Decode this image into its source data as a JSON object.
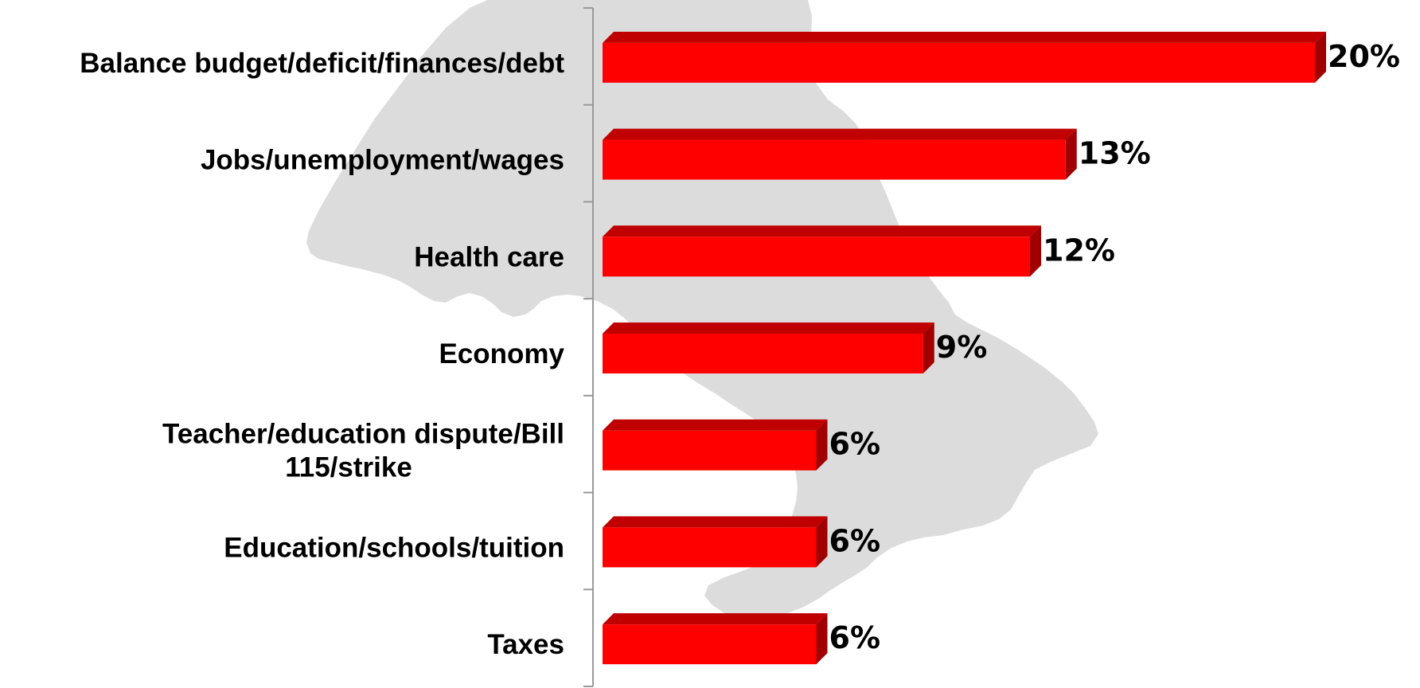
{
  "colors": {
    "bar_front": "#ff0000",
    "bar_top": "#c00000",
    "bar_side": "#a00000",
    "axis": "#999999",
    "map_background": "#dcdcdc"
  },
  "chart_data": {
    "type": "bar",
    "orientation": "horizontal",
    "style": "3d",
    "categories": [
      "Balance budget/deficit/finances/debt",
      "Jobs/unemployment/wages",
      "Health care",
      "Economy",
      "Teacher/education dispute/Bill 115/strike",
      "Education/schools/tuition",
      "Taxes"
    ],
    "values": [
      20,
      13,
      12,
      9,
      6,
      6,
      6
    ],
    "value_labels": [
      "20%",
      "13%",
      "12%",
      "9%",
      "6%",
      "6%",
      "6%"
    ],
    "category_label_lines": [
      [
        "Balance budget/deficit/finances/debt"
      ],
      [
        "Jobs/unemployment/wages"
      ],
      [
        "Health care"
      ],
      [
        "Economy"
      ],
      [
        "Teacher/education dispute/Bill",
        "115/strike"
      ],
      [
        "Education/schools/tuition"
      ],
      [
        "Taxes"
      ]
    ],
    "unit": "%",
    "xlim": [
      0,
      20
    ],
    "grid": false,
    "legend": "none"
  }
}
